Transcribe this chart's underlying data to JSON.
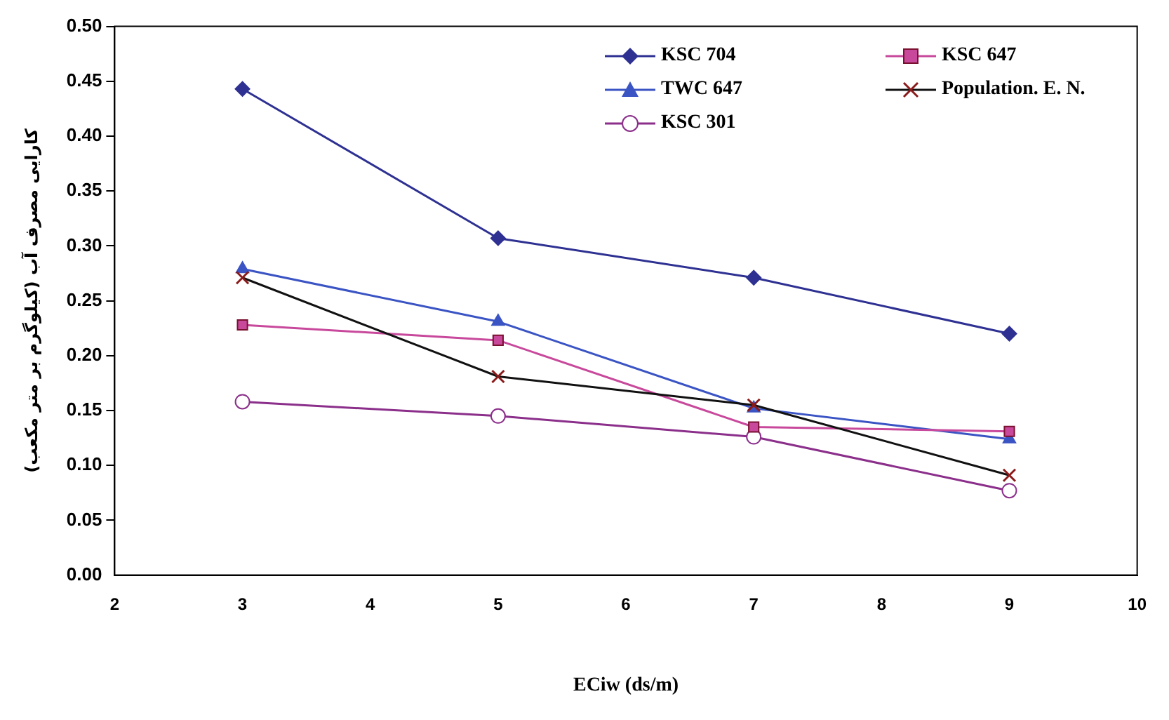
{
  "chart_data": {
    "type": "line",
    "xlabel": "ECiw (ds/m)",
    "ylabel": "کارایی مصرف آب (کیلوگرم بر متر مکعب)",
    "x": [
      3,
      5,
      7,
      9
    ],
    "xlim": [
      2,
      10
    ],
    "xticks": [
      2,
      3,
      4,
      5,
      6,
      7,
      8,
      9,
      10
    ],
    "ylim": [
      0,
      0.5
    ],
    "yticks": [
      {
        "value": 0,
        "label": "0.00"
      },
      {
        "value": 0.05,
        "label": "0.05"
      },
      {
        "value": 0.1,
        "label": "0.10"
      },
      {
        "value": 0.15,
        "label": "0.15"
      },
      {
        "value": 0.2,
        "label": "0.20"
      },
      {
        "value": 0.25,
        "label": "0.25"
      },
      {
        "value": 0.3,
        "label": "0.30"
      },
      {
        "value": 0.35,
        "label": "0.35"
      },
      {
        "value": 0.4,
        "label": "0.40"
      },
      {
        "value": 0.45,
        "label": "0.45"
      },
      {
        "value": 0.5,
        "label": "0.50"
      }
    ],
    "grid": false,
    "legend": "top right",
    "line_style": "solid",
    "series": [
      {
        "name": "KSC 704",
        "color": "#2e3192",
        "marker": "diamond",
        "values": [
          0.443,
          0.307,
          0.271,
          0.22
        ]
      },
      {
        "name": "KSC 647",
        "color": "#c8499c",
        "marker": "square",
        "values": [
          0.228,
          0.214,
          0.135,
          0.131
        ]
      },
      {
        "name": "TWC 647",
        "color": "#3b54c4",
        "marker": "triangle",
        "values": [
          0.279,
          0.231,
          0.152,
          0.124
        ]
      },
      {
        "name": "Population. E. N.",
        "color": "#111111",
        "marker": "cross",
        "values": [
          0.271,
          0.181,
          0.155,
          0.091
        ]
      },
      {
        "name": "KSC 301",
        "color": "#8b2f8b",
        "marker": "circle",
        "values": [
          0.158,
          0.145,
          0.126,
          0.077
        ]
      }
    ]
  }
}
